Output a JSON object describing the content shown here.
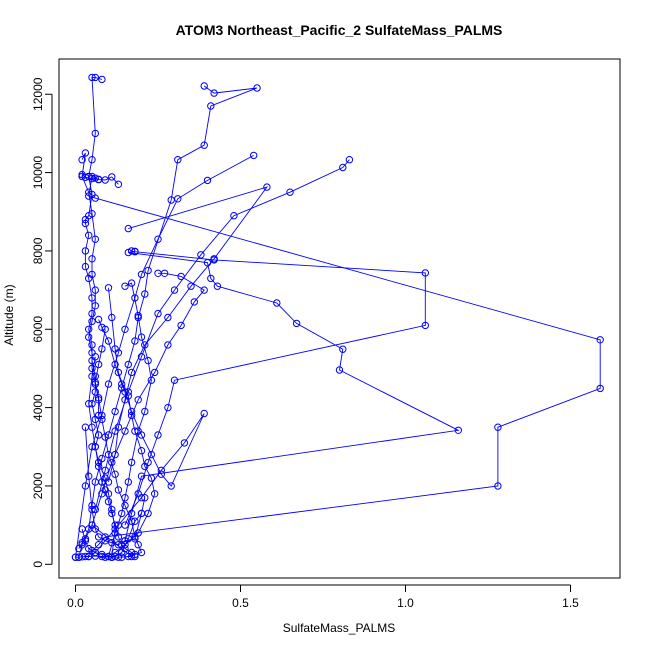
{
  "chart_data": {
    "type": "scatter",
    "title": "ATOM3 Northeast_Pacific_2 SulfateMass_PALMS",
    "xlabel": "SulfateMass_PALMS",
    "ylabel": "Altitude (m)",
    "xlim": [
      -0.05,
      1.65
    ],
    "ylim": [
      -350,
      12900
    ],
    "x_ticks": [
      0.0,
      0.5,
      1.0,
      1.5
    ],
    "x_tick_labels": [
      "0.0",
      "0.5",
      "1.0",
      "1.5"
    ],
    "y_ticks": [
      0,
      2000,
      4000,
      6000,
      8000,
      10000,
      12000
    ],
    "y_tick_labels": [
      "0",
      "2000",
      "4000",
      "6000",
      "8000",
      "10000",
      "12000"
    ],
    "grid": false,
    "legend": "none",
    "colors": {
      "series": "#0000ff",
      "axis": "#000000",
      "background": "#ffffff"
    },
    "series": [
      {
        "line": true,
        "x": [
          0.08,
          0.06,
          0.05,
          0.06,
          0.05,
          0.04,
          0.04,
          0.05,
          0.04,
          0.03,
          0.03,
          0.04,
          0.03,
          0.03,
          0.04,
          0.05,
          0.05,
          0.04,
          0.05,
          0.05,
          0.06,
          0.06,
          0.05,
          0.06,
          0.07,
          0.06,
          0.07,
          0.09,
          0.1,
          0.11,
          0.12,
          0.11
        ],
        "y": [
          12380,
          12430,
          12430,
          11000,
          10330,
          9900,
          9900,
          9440,
          8900,
          8800,
          8700,
          8400,
          8000,
          7600,
          7300,
          6800,
          6400,
          6000,
          5600,
          5200,
          4800,
          4400,
          4100,
          3700,
          3300,
          3000,
          2600,
          2200,
          1800,
          1400,
          900,
          180
        ]
      },
      {
        "line": true,
        "x": [
          0.39,
          0.42,
          0.55,
          0.41,
          0.39,
          0.31,
          0.29,
          0.22,
          0.21,
          0.19,
          0.18,
          0.16,
          0.14,
          0.12,
          0.1,
          0.08,
          0.06,
          0.05,
          0.04,
          0.02,
          0.01
        ],
        "y": [
          12210,
          12030,
          12160,
          11700,
          10700,
          10330,
          9300,
          7500,
          6900,
          6300,
          5700,
          5100,
          4500,
          3900,
          3300,
          2700,
          2100,
          1500,
          900,
          500,
          180
        ]
      },
      {
        "line": true,
        "x": [
          0.54,
          0.4,
          0.31,
          0.25,
          0.2,
          0.18,
          0.15,
          0.13,
          0.1,
          0.08,
          0.05,
          0.03,
          0.0
        ],
        "y": [
          10440,
          9800,
          9330,
          8300,
          7400,
          6800,
          6000,
          5400,
          4600,
          3800,
          3000,
          2000,
          180
        ]
      },
      {
        "line": true,
        "x": [
          0.83,
          0.81,
          0.65,
          0.48,
          0.38,
          0.3,
          0.25,
          0.2,
          0.16,
          0.12,
          0.09,
          0.06
        ],
        "y": [
          10330,
          10130,
          9500,
          8900,
          7900,
          7000,
          6400,
          5300,
          4400,
          3400,
          2400,
          1400
        ]
      },
      {
        "line": true,
        "x": [
          0.16,
          0.58,
          0.42,
          0.35,
          0.28,
          0.21,
          0.17,
          0.15,
          0.13,
          0.12,
          0.1
        ],
        "y": [
          8570,
          9630,
          7800,
          7100,
          6300,
          5600,
          4900,
          4200,
          3500,
          2800,
          2100
        ]
      },
      {
        "line": true,
        "x": [
          0.07,
          0.06,
          0.05,
          0.04,
          0.06,
          1.59,
          1.59,
          1.28,
          1.28,
          0.09,
          0.07,
          0.05,
          0.04
        ],
        "y": [
          9830,
          9860,
          9900,
          9400,
          9350,
          5730,
          4490,
          3500,
          2000,
          700,
          500,
          350,
          200
        ]
      },
      {
        "line": true,
        "x": [
          0.17,
          0.18,
          0.42,
          1.06,
          1.06,
          0.3,
          0.28,
          0.25,
          0.22,
          0.19,
          0.15
        ],
        "y": [
          8000,
          7980,
          7770,
          7440,
          6100,
          4700,
          4000,
          3300,
          2600,
          1800,
          1000
        ]
      },
      {
        "line": true,
        "x": [
          0.18,
          0.16,
          0.4,
          0.41,
          0.43,
          0.61,
          0.67,
          0.81,
          0.8,
          1.16,
          0.2,
          0.17,
          0.15
        ],
        "y": [
          7990,
          7960,
          7700,
          7300,
          7100,
          6670,
          6150,
          5490,
          4960,
          3420,
          2250,
          1300,
          600
        ]
      },
      {
        "line": true,
        "x": [
          0.25,
          0.27,
          0.32,
          0.39,
          0.36,
          0.32,
          0.28,
          0.24,
          0.19,
          0.15,
          0.11,
          0.08,
          0.05
        ],
        "y": [
          7430,
          7430,
          7350,
          7000,
          6700,
          6100,
          5600,
          4900,
          4200,
          3400,
          2600,
          1800,
          1000
        ]
      },
      {
        "line": true,
        "x": [
          0.15,
          0.17,
          0.19,
          0.2,
          0.22,
          0.23,
          0.21,
          0.19,
          0.17,
          0.16,
          0.15,
          0.14,
          0.12,
          0.1
        ],
        "y": [
          7100,
          7180,
          6350,
          5800,
          5200,
          4700,
          3900,
          3400,
          2600,
          2100,
          1700,
          1300,
          800,
          200
        ]
      },
      {
        "line": true,
        "x": [
          0.1,
          0.11,
          0.12,
          0.13,
          0.15,
          0.17,
          0.2,
          0.23,
          0.26,
          0.29,
          0.39,
          0.33,
          0.26,
          0.2,
          0.13,
          0.06
        ],
        "y": [
          7060,
          6300,
          5500,
          4900,
          4400,
          3900,
          3300,
          2800,
          2300,
          2000,
          3850,
          3100,
          2400,
          1700,
          1000,
          300
        ]
      },
      {
        "line": true,
        "x": [
          0.07,
          0.08,
          0.1,
          0.12,
          0.14,
          0.16,
          0.17,
          0.18,
          0.2,
          0.21,
          0.23,
          0.24,
          0.22,
          0.19,
          0.15,
          0.12,
          0.09
        ],
        "y": [
          6250,
          6050,
          5700,
          5100,
          4600,
          4300,
          3800,
          3400,
          2900,
          2500,
          2200,
          1800,
          1300,
          800,
          500,
          300,
          180
        ]
      },
      {
        "line": true,
        "x": [
          0.09,
          0.08,
          0.07,
          0.06,
          0.07,
          0.08,
          0.09,
          0.1,
          0.12,
          0.13,
          0.15,
          0.17,
          0.18,
          0.19,
          0.2,
          0.18,
          0.16,
          0.14
        ],
        "y": [
          6000,
          5500,
          5100,
          4650,
          4250,
          3700,
          3250,
          2800,
          2300,
          1900,
          1500,
          1100,
          700,
          500,
          300,
          250,
          200,
          180
        ]
      },
      {
        "line": true,
        "x": [
          0.06,
          0.05,
          0.04,
          0.05,
          0.06,
          0.07,
          0.08,
          0.09,
          0.1,
          0.11,
          0.12,
          0.13,
          0.14,
          0.15,
          0.17,
          0.18
        ],
        "y": [
          5300,
          4800,
          4100,
          3500,
          3000,
          2500,
          2100,
          1900,
          1600,
          1300,
          1000,
          700,
          500,
          400,
          300,
          200
        ]
      },
      {
        "line": true,
        "x": [
          0.03,
          0.04,
          0.05,
          0.06,
          0.07,
          0.09,
          0.11,
          0.13,
          0.15,
          0.18,
          0.2,
          0.21
        ],
        "y": [
          3500,
          2250,
          1400,
          900,
          700,
          600,
          550,
          500,
          600,
          650,
          1300,
          1700
        ]
      },
      {
        "line": true,
        "x": [
          0.02,
          0.03,
          0.04,
          0.06,
          0.08,
          0.1,
          0.12,
          0.14,
          0.16,
          0.18,
          0.2
        ],
        "y": [
          900,
          600,
          400,
          300,
          250,
          200,
          200,
          300,
          650,
          1100,
          1300
        ]
      },
      {
        "line": true,
        "x": [
          0.0,
          0.01,
          0.02,
          0.03,
          0.04,
          0.06,
          0.08,
          0.11,
          0.13,
          0.17,
          0.05,
          0.03,
          0.02,
          0.01
        ],
        "y": [
          180,
          180,
          190,
          200,
          200,
          210,
          200,
          180,
          180,
          200,
          1000,
          650,
          550,
          400
        ]
      },
      {
        "line": true,
        "x": [
          0.02,
          0.03,
          0.05,
          0.07,
          0.09,
          0.11,
          0.13
        ],
        "y": [
          9950,
          9880,
          9850,
          9820,
          9810,
          9890,
          9700
        ]
      },
      {
        "line": true,
        "x": [
          0.02,
          0.03,
          0.02,
          0.04,
          0.05,
          0.06,
          0.05,
          0.05,
          0.06,
          0.06,
          0.05,
          0.04,
          0.05,
          0.05,
          0.06,
          0.07,
          0.07
        ],
        "y": [
          10330,
          10500,
          9900,
          9500,
          8950,
          8300,
          7800,
          7400,
          7000,
          6600,
          6200,
          5800,
          5400,
          5000,
          4600,
          4200,
          3800
        ]
      }
    ]
  }
}
